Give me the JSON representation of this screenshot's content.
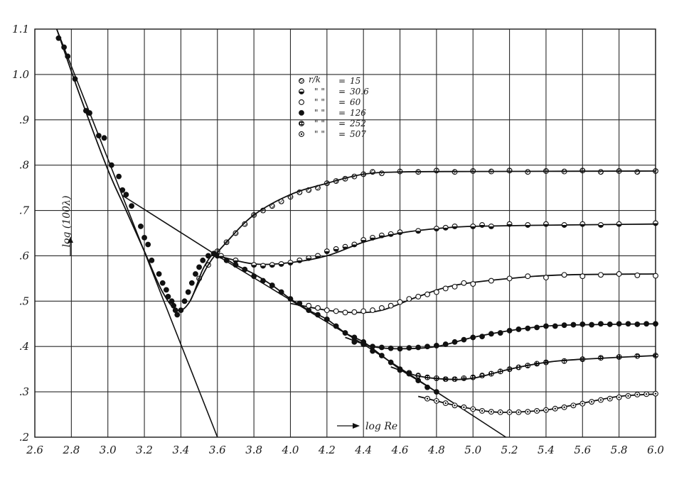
{
  "chart_data": {
    "type": "scatter",
    "title": "",
    "xlabel": "log Re",
    "ylabel": "log (100λ)",
    "xlim": [
      2.6,
      6.0
    ],
    "ylim": [
      0.2,
      1.1
    ],
    "x_ticks": [
      "2.6",
      "2.8",
      "3.0",
      "3.2",
      "3.4",
      "3.6",
      "3.8",
      "4.0",
      "4.2",
      "4.4",
      "4.6",
      "4.8",
      "5.0",
      "5.2",
      "5.4",
      "5.6",
      "5.8",
      "6.0"
    ],
    "y_ticks": [
      ".2",
      ".3",
      ".4",
      ".5",
      ".6",
      ".7",
      ".8",
      ".9",
      "1.0",
      "1.1"
    ],
    "grid": true,
    "legend_position": "top-center",
    "legend_header": "r/k",
    "legend_ditto": "\" \"",
    "legend_entries": [
      "15",
      "30.6",
      "60",
      "126",
      "252",
      "507"
    ],
    "reference_lines": [
      {
        "points": [
          [
            2.72,
            1.1
          ],
          [
            3.6,
            0.2
          ]
        ]
      },
      {
        "points": [
          [
            3.08,
            0.733
          ],
          [
            3.6,
            0.6
          ],
          [
            4.4,
            0.405
          ],
          [
            5.18,
            0.2
          ]
        ]
      }
    ],
    "series": [
      {
        "name": "15",
        "marker": "hatched",
        "curve": [
          [
            3.45,
            0.5
          ],
          [
            3.55,
            0.58
          ],
          [
            3.65,
            0.63
          ],
          [
            3.8,
            0.69
          ],
          [
            4.0,
            0.735
          ],
          [
            4.2,
            0.76
          ],
          [
            4.4,
            0.78
          ],
          [
            4.6,
            0.785
          ],
          [
            5.0,
            0.786
          ],
          [
            6.0,
            0.787
          ]
        ],
        "points": [
          [
            3.5,
            0.55
          ],
          [
            3.55,
            0.58
          ],
          [
            3.6,
            0.61
          ],
          [
            3.65,
            0.63
          ],
          [
            3.7,
            0.65
          ],
          [
            3.75,
            0.67
          ],
          [
            3.8,
            0.69
          ],
          [
            3.85,
            0.7
          ],
          [
            3.9,
            0.71
          ],
          [
            3.95,
            0.72
          ],
          [
            4.0,
            0.73
          ],
          [
            4.05,
            0.74
          ],
          [
            4.1,
            0.745
          ],
          [
            4.15,
            0.75
          ],
          [
            4.2,
            0.76
          ],
          [
            4.25,
            0.765
          ],
          [
            4.3,
            0.77
          ],
          [
            4.35,
            0.775
          ],
          [
            4.4,
            0.78
          ],
          [
            4.45,
            0.785
          ],
          [
            4.5,
            0.782
          ],
          [
            4.6,
            0.786
          ],
          [
            4.7,
            0.785
          ],
          [
            4.8,
            0.788
          ],
          [
            4.9,
            0.785
          ],
          [
            5.0,
            0.787
          ],
          [
            5.1,
            0.786
          ],
          [
            5.2,
            0.788
          ],
          [
            5.3,
            0.785
          ],
          [
            5.4,
            0.787
          ],
          [
            5.5,
            0.786
          ],
          [
            5.6,
            0.788
          ],
          [
            5.7,
            0.785
          ],
          [
            5.8,
            0.787
          ],
          [
            5.9,
            0.785
          ],
          [
            6.0,
            0.787
          ]
        ]
      },
      {
        "name": "30.6",
        "marker": "half-filled",
        "curve": [
          [
            3.6,
            0.6
          ],
          [
            3.8,
            0.582
          ],
          [
            4.0,
            0.585
          ],
          [
            4.2,
            0.6
          ],
          [
            4.4,
            0.63
          ],
          [
            4.6,
            0.65
          ],
          [
            4.8,
            0.66
          ],
          [
            5.0,
            0.665
          ],
          [
            5.5,
            0.668
          ],
          [
            6.0,
            0.67
          ]
        ],
        "points": [
          [
            3.62,
            0.6
          ],
          [
            3.7,
            0.59
          ],
          [
            3.8,
            0.58
          ],
          [
            3.85,
            0.578
          ],
          [
            3.9,
            0.58
          ],
          [
            3.95,
            0.582
          ],
          [
            4.0,
            0.585
          ],
          [
            4.05,
            0.59
          ],
          [
            4.1,
            0.595
          ],
          [
            4.15,
            0.6
          ],
          [
            4.2,
            0.61
          ],
          [
            4.25,
            0.615
          ],
          [
            4.3,
            0.62
          ],
          [
            4.35,
            0.625
          ],
          [
            4.4,
            0.635
          ],
          [
            4.45,
            0.64
          ],
          [
            4.5,
            0.645
          ],
          [
            4.55,
            0.648
          ],
          [
            4.6,
            0.652
          ],
          [
            4.7,
            0.655
          ],
          [
            4.8,
            0.66
          ],
          [
            4.85,
            0.662
          ],
          [
            4.9,
            0.665
          ],
          [
            5.0,
            0.665
          ],
          [
            5.05,
            0.668
          ],
          [
            5.1,
            0.665
          ],
          [
            5.2,
            0.67
          ],
          [
            5.3,
            0.668
          ],
          [
            5.4,
            0.67
          ],
          [
            5.5,
            0.668
          ],
          [
            5.6,
            0.67
          ],
          [
            5.7,
            0.668
          ],
          [
            5.8,
            0.67
          ],
          [
            6.0,
            0.672
          ]
        ]
      },
      {
        "name": "60",
        "marker": "open",
        "curve": [
          [
            4.0,
            0.495
          ],
          [
            4.2,
            0.48
          ],
          [
            4.35,
            0.475
          ],
          [
            4.5,
            0.48
          ],
          [
            4.7,
            0.51
          ],
          [
            4.9,
            0.535
          ],
          [
            5.2,
            0.55
          ],
          [
            5.5,
            0.558
          ],
          [
            6.0,
            0.56
          ]
        ],
        "points": [
          [
            4.1,
            0.49
          ],
          [
            4.15,
            0.485
          ],
          [
            4.2,
            0.48
          ],
          [
            4.25,
            0.478
          ],
          [
            4.3,
            0.475
          ],
          [
            4.35,
            0.476
          ],
          [
            4.4,
            0.478
          ],
          [
            4.45,
            0.48
          ],
          [
            4.5,
            0.485
          ],
          [
            4.55,
            0.49
          ],
          [
            4.6,
            0.498
          ],
          [
            4.65,
            0.505
          ],
          [
            4.7,
            0.51
          ],
          [
            4.75,
            0.515
          ],
          [
            4.8,
            0.52
          ],
          [
            4.85,
            0.528
          ],
          [
            4.9,
            0.532
          ],
          [
            4.95,
            0.54
          ],
          [
            5.0,
            0.538
          ],
          [
            5.1,
            0.545
          ],
          [
            5.2,
            0.55
          ],
          [
            5.3,
            0.555
          ],
          [
            5.4,
            0.552
          ],
          [
            5.5,
            0.558
          ],
          [
            5.6,
            0.555
          ],
          [
            5.7,
            0.558
          ],
          [
            5.8,
            0.56
          ],
          [
            5.9,
            0.557
          ],
          [
            6.0,
            0.556
          ]
        ]
      },
      {
        "name": "126",
        "marker": "filled",
        "curve": [
          [
            4.3,
            0.42
          ],
          [
            4.45,
            0.4
          ],
          [
            4.6,
            0.395
          ],
          [
            4.8,
            0.4
          ],
          [
            5.0,
            0.42
          ],
          [
            5.2,
            0.435
          ],
          [
            5.4,
            0.445
          ],
          [
            5.6,
            0.448
          ],
          [
            6.0,
            0.45
          ]
        ],
        "points": [
          [
            4.35,
            0.41
          ],
          [
            4.4,
            0.405
          ],
          [
            4.45,
            0.4
          ],
          [
            4.5,
            0.398
          ],
          [
            4.55,
            0.396
          ],
          [
            4.6,
            0.395
          ],
          [
            4.65,
            0.397
          ],
          [
            4.7,
            0.398
          ],
          [
            4.75,
            0.4
          ],
          [
            4.8,
            0.402
          ],
          [
            4.85,
            0.405
          ],
          [
            4.9,
            0.41
          ],
          [
            4.95,
            0.415
          ],
          [
            5.0,
            0.42
          ],
          [
            5.05,
            0.422
          ],
          [
            5.1,
            0.428
          ],
          [
            5.15,
            0.43
          ],
          [
            5.2,
            0.435
          ],
          [
            5.25,
            0.438
          ],
          [
            5.3,
            0.44
          ],
          [
            5.35,
            0.442
          ],
          [
            5.4,
            0.445
          ],
          [
            5.45,
            0.445
          ],
          [
            5.5,
            0.447
          ],
          [
            5.55,
            0.448
          ],
          [
            5.6,
            0.449
          ],
          [
            5.65,
            0.448
          ],
          [
            5.7,
            0.45
          ],
          [
            5.75,
            0.449
          ],
          [
            5.8,
            0.45
          ],
          [
            5.85,
            0.45
          ],
          [
            5.9,
            0.449
          ],
          [
            5.95,
            0.45
          ],
          [
            6.0,
            0.45
          ]
        ]
      },
      {
        "name": "252",
        "marker": "cross-hatched",
        "curve": [
          [
            4.55,
            0.355
          ],
          [
            4.7,
            0.335
          ],
          [
            4.85,
            0.328
          ],
          [
            5.0,
            0.33
          ],
          [
            5.2,
            0.35
          ],
          [
            5.4,
            0.365
          ],
          [
            5.6,
            0.372
          ],
          [
            6.0,
            0.38
          ]
        ],
        "points": [
          [
            4.6,
            0.348
          ],
          [
            4.65,
            0.342
          ],
          [
            4.7,
            0.336
          ],
          [
            4.75,
            0.332
          ],
          [
            4.8,
            0.33
          ],
          [
            4.85,
            0.328
          ],
          [
            4.9,
            0.328
          ],
          [
            4.95,
            0.33
          ],
          [
            5.0,
            0.332
          ],
          [
            5.05,
            0.336
          ],
          [
            5.1,
            0.34
          ],
          [
            5.15,
            0.345
          ],
          [
            5.2,
            0.35
          ],
          [
            5.25,
            0.354
          ],
          [
            5.3,
            0.358
          ],
          [
            5.35,
            0.362
          ],
          [
            5.4,
            0.365
          ],
          [
            5.5,
            0.368
          ],
          [
            5.6,
            0.372
          ],
          [
            5.7,
            0.375
          ],
          [
            5.8,
            0.377
          ],
          [
            5.9,
            0.379
          ],
          [
            6.0,
            0.38
          ]
        ]
      },
      {
        "name": "507",
        "marker": "dotted",
        "curve": [
          [
            4.7,
            0.29
          ],
          [
            4.85,
            0.275
          ],
          [
            5.0,
            0.262
          ],
          [
            5.1,
            0.256
          ],
          [
            5.2,
            0.255
          ],
          [
            5.4,
            0.26
          ],
          [
            5.6,
            0.275
          ],
          [
            5.8,
            0.29
          ],
          [
            6.0,
            0.295
          ]
        ],
        "points": [
          [
            4.75,
            0.285
          ],
          [
            4.8,
            0.28
          ],
          [
            4.85,
            0.275
          ],
          [
            4.9,
            0.27
          ],
          [
            4.95,
            0.266
          ],
          [
            5.0,
            0.262
          ],
          [
            5.05,
            0.258
          ],
          [
            5.1,
            0.256
          ],
          [
            5.15,
            0.255
          ],
          [
            5.2,
            0.255
          ],
          [
            5.25,
            0.255
          ],
          [
            5.3,
            0.256
          ],
          [
            5.35,
            0.258
          ],
          [
            5.4,
            0.26
          ],
          [
            5.45,
            0.263
          ],
          [
            5.5,
            0.266
          ],
          [
            5.55,
            0.27
          ],
          [
            5.6,
            0.274
          ],
          [
            5.65,
            0.278
          ],
          [
            5.7,
            0.282
          ],
          [
            5.75,
            0.285
          ],
          [
            5.8,
            0.288
          ],
          [
            5.85,
            0.291
          ],
          [
            5.9,
            0.294
          ],
          [
            5.95,
            0.295
          ],
          [
            6.0,
            0.296
          ]
        ]
      }
    ],
    "shared_points": [
      [
        2.73,
        1.08
      ],
      [
        2.76,
        1.06
      ],
      [
        2.78,
        1.04
      ],
      [
        2.82,
        0.99
      ],
      [
        2.88,
        0.92
      ],
      [
        2.9,
        0.915
      ],
      [
        2.95,
        0.865
      ],
      [
        2.98,
        0.86
      ],
      [
        3.02,
        0.8
      ],
      [
        3.06,
        0.775
      ],
      [
        3.08,
        0.745
      ],
      [
        3.1,
        0.735
      ],
      [
        3.13,
        0.71
      ],
      [
        3.18,
        0.665
      ],
      [
        3.2,
        0.64
      ],
      [
        3.22,
        0.625
      ],
      [
        3.24,
        0.59
      ],
      [
        3.28,
        0.56
      ],
      [
        3.3,
        0.54
      ],
      [
        3.32,
        0.525
      ],
      [
        3.33,
        0.51
      ],
      [
        3.35,
        0.5
      ],
      [
        3.36,
        0.49
      ],
      [
        3.37,
        0.48
      ],
      [
        3.38,
        0.47
      ],
      [
        3.4,
        0.48
      ],
      [
        3.42,
        0.5
      ],
      [
        3.44,
        0.52
      ],
      [
        3.46,
        0.54
      ],
      [
        3.48,
        0.56
      ],
      [
        3.5,
        0.575
      ],
      [
        3.52,
        0.59
      ],
      [
        3.55,
        0.6
      ],
      [
        3.58,
        0.605
      ],
      [
        3.6,
        0.6
      ],
      [
        3.65,
        0.59
      ],
      [
        3.7,
        0.58
      ],
      [
        3.75,
        0.57
      ],
      [
        3.8,
        0.555
      ],
      [
        3.85,
        0.545
      ],
      [
        3.9,
        0.535
      ],
      [
        3.95,
        0.52
      ],
      [
        4.0,
        0.505
      ],
      [
        4.05,
        0.495
      ],
      [
        4.1,
        0.48
      ],
      [
        4.15,
        0.47
      ],
      [
        4.2,
        0.46
      ],
      [
        4.25,
        0.445
      ],
      [
        4.3,
        0.43
      ],
      [
        4.35,
        0.42
      ],
      [
        4.4,
        0.41
      ],
      [
        4.45,
        0.39
      ],
      [
        4.5,
        0.38
      ],
      [
        4.55,
        0.365
      ],
      [
        4.6,
        0.35
      ],
      [
        4.65,
        0.34
      ],
      [
        4.7,
        0.325
      ],
      [
        4.75,
        0.31
      ],
      [
        4.8,
        0.3
      ]
    ],
    "shared_curve": [
      [
        2.72,
        1.1
      ],
      [
        2.85,
        0.95
      ],
      [
        3.0,
        0.79
      ],
      [
        3.1,
        0.7
      ],
      [
        3.2,
        0.61
      ],
      [
        3.3,
        0.52
      ],
      [
        3.38,
        0.48
      ],
      [
        3.45,
        0.5
      ],
      [
        3.52,
        0.57
      ],
      [
        3.58,
        0.605
      ],
      [
        3.62,
        0.6
      ],
      [
        3.7,
        0.58
      ],
      [
        3.8,
        0.56
      ],
      [
        3.9,
        0.535
      ],
      [
        4.0,
        0.505
      ],
      [
        4.1,
        0.48
      ],
      [
        4.2,
        0.46
      ],
      [
        4.3,
        0.43
      ],
      [
        4.4,
        0.41
      ],
      [
        4.5,
        0.38
      ],
      [
        4.6,
        0.35
      ],
      [
        4.7,
        0.325
      ],
      [
        4.8,
        0.3
      ]
    ]
  }
}
